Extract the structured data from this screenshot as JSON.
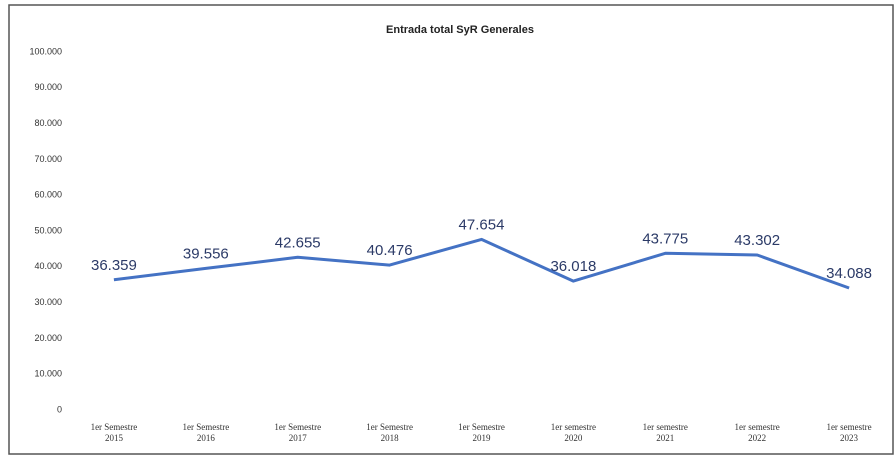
{
  "chart_data": {
    "type": "line",
    "title": "Entrada total SyR Generales",
    "categories": [
      "1er Semestre\n2015",
      "1er Semestre\n2016",
      "1er Semestre\n2017",
      "1er Semestre\n2018",
      "1er Semestre\n2019",
      "1er semestre\n2020",
      "1er semestre\n2021",
      "1er semestre\n2022",
      "1er semestre\n2023"
    ],
    "series": [
      {
        "name": null,
        "color": "#4472c4",
        "values": [
          36359,
          39556,
          42655,
          40476,
          47654,
          36018,
          43775,
          43302,
          34088
        ],
        "value_labels": [
          "36.359",
          "39.556",
          "42.655",
          "40.476",
          "47.654",
          "36.018",
          "43.775",
          "43.302",
          "34.088"
        ]
      }
    ],
    "ylim": [
      0,
      100000
    ],
    "yticks": [
      0,
      {
        "value": 10000,
        "label": "10.000"
      },
      {
        "value": 20000,
        "label": "20.000"
      },
      {
        "value": 30000,
        "label": "30.000"
      },
      {
        "value": 40000,
        "label": "40.000"
      },
      {
        "value": 50000,
        "label": "50.000"
      },
      {
        "value": 60000,
        "label": "60.000"
      },
      {
        "value": 70000,
        "label": "70.000"
      },
      {
        "value": 80000,
        "label": "80.000"
      },
      {
        "value": 90000,
        "label": "90.000"
      },
      {
        "value": 100000,
        "label": "100.000"
      }
    ],
    "grid": false
  }
}
